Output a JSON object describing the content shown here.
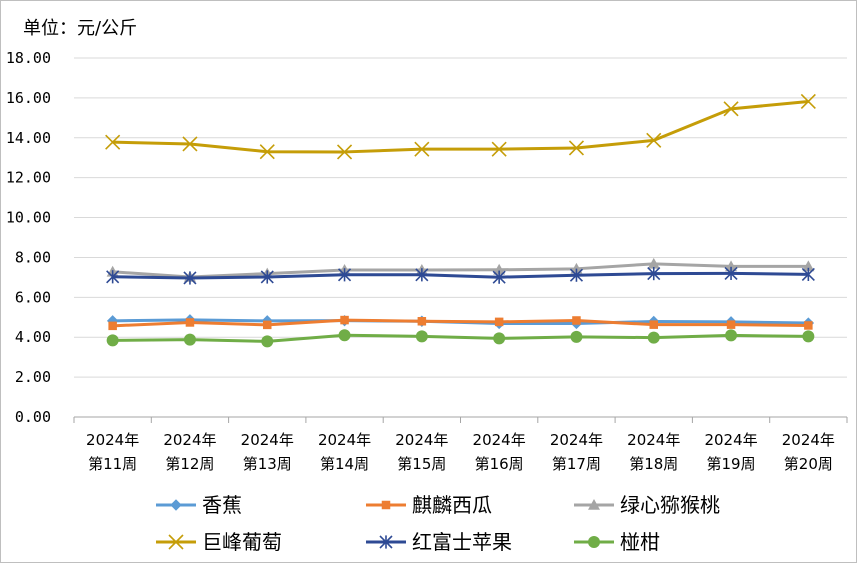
{
  "chart_data": {
    "type": "line",
    "unit_label": "单位：元/公斤",
    "categories": [
      [
        "2024年",
        "第11周"
      ],
      [
        "2024年",
        "第12周"
      ],
      [
        "2024年",
        "第13周"
      ],
      [
        "2024年",
        "第14周"
      ],
      [
        "2024年",
        "第15周"
      ],
      [
        "2024年",
        "第16周"
      ],
      [
        "2024年",
        "第17周"
      ],
      [
        "2024年",
        "第18周"
      ],
      [
        "2024年",
        "第19周"
      ],
      [
        "2024年",
        "第20周"
      ]
    ],
    "ylim": [
      0,
      18
    ],
    "yticks": [
      "0.00",
      "2.00",
      "4.00",
      "6.00",
      "8.00",
      "10.00",
      "12.00",
      "14.00",
      "16.00",
      "18.00"
    ],
    "grid": "horizontal",
    "legend_position": "bottom",
    "series": [
      {
        "name": "香蕉",
        "color": "#5B9BD5",
        "marker": "diamond",
        "values": [
          4.82,
          4.87,
          4.82,
          4.83,
          4.8,
          4.69,
          4.69,
          4.79,
          4.77,
          4.71
        ]
      },
      {
        "name": "麒麟西瓜",
        "color": "#ED7D31",
        "marker": "square",
        "values": [
          4.57,
          4.74,
          4.62,
          4.86,
          4.8,
          4.77,
          4.84,
          4.63,
          4.63,
          4.59
        ]
      },
      {
        "name": "绿心猕猴桃",
        "color": "#A5A5A5",
        "marker": "triangle",
        "values": [
          7.28,
          7.02,
          7.19,
          7.37,
          7.37,
          7.38,
          7.43,
          7.68,
          7.55,
          7.55
        ]
      },
      {
        "name": "巨峰葡萄",
        "color": "#C59D08",
        "marker": "x",
        "values": [
          13.78,
          13.69,
          13.3,
          13.29,
          13.43,
          13.43,
          13.49,
          13.87,
          15.45,
          15.82
        ]
      },
      {
        "name": "红富士苹果",
        "color": "#2E4A94",
        "marker": "star",
        "values": [
          7.03,
          6.97,
          7.02,
          7.13,
          7.13,
          7.01,
          7.11,
          7.19,
          7.2,
          7.15
        ]
      },
      {
        "name": "椪柑",
        "color": "#70AD47",
        "marker": "circle",
        "values": [
          3.84,
          3.88,
          3.79,
          4.1,
          4.04,
          3.94,
          4.02,
          3.98,
          4.09,
          4.04
        ]
      }
    ]
  }
}
